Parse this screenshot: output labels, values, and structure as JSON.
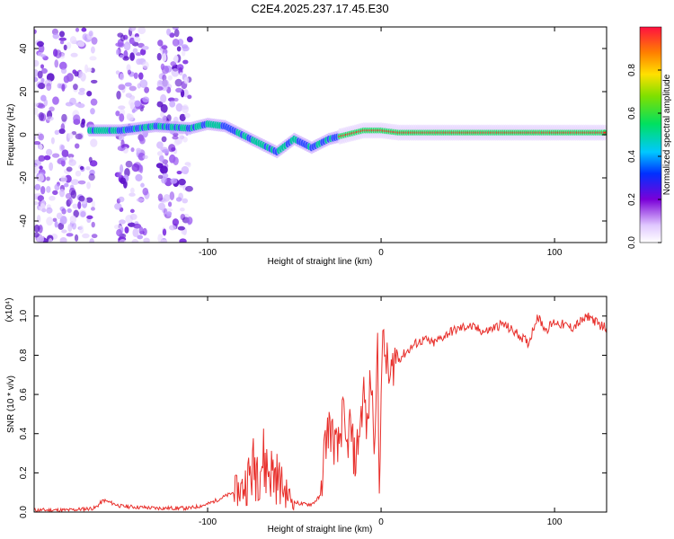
{
  "title": "C2E4.2025.237.17.45.E30",
  "chart_data": [
    {
      "type": "heatmap",
      "xlabel": "Height of straight line (km)",
      "ylabel": "Frequency (Hz)",
      "xlim": [
        -200,
        130
      ],
      "ylim": [
        -50,
        50
      ],
      "x_ticks": [
        -100,
        0,
        100
      ],
      "y_ticks": [
        -40,
        -20,
        0,
        20,
        40
      ],
      "colorbar": {
        "label": "Normalized spectral amplitude",
        "range": [
          0,
          1
        ],
        "ticks": [
          "0.0",
          "0.2",
          "0.4",
          "0.6",
          "0.8"
        ]
      },
      "ridge": {
        "x": [
          -168,
          -150,
          -130,
          -110,
          -100,
          -90,
          -80,
          -70,
          -60,
          -50,
          -45,
          -40,
          -35,
          -30,
          -20,
          -10,
          0,
          10,
          20,
          40,
          60,
          80,
          100,
          130
        ],
        "freq": [
          2,
          2,
          4,
          3,
          5,
          4,
          0,
          -4,
          -8,
          -2,
          -4,
          -6,
          -4,
          -2,
          0,
          2,
          2,
          1,
          1,
          1,
          1,
          1,
          1,
          1
        ]
      }
    },
    {
      "type": "line",
      "xlabel": "Height of straight line (km)",
      "ylabel": "SNR (10 * v/v)",
      "y_multiplier": "(x10⁴)",
      "xlim": [
        -200,
        130
      ],
      "ylim": [
        0,
        1.1
      ],
      "x_ticks": [
        -100,
        0,
        100
      ],
      "y_ticks": [
        "0.0",
        "0.2",
        "0.4",
        "0.6",
        "0.8",
        "1.0"
      ],
      "color": "#e8302c",
      "series": [
        {
          "x": [
            -200,
            -180,
            -165,
            -160,
            -150,
            -130,
            -110,
            -100,
            -90,
            -80,
            -75,
            -70,
            -65,
            -60,
            -55,
            -50,
            -45,
            -40,
            -35,
            -33,
            -30,
            -28,
            -25,
            -22,
            -20,
            -18,
            -15,
            -12,
            -10,
            -8,
            -6,
            -4,
            -2,
            -1,
            0,
            1,
            3,
            5,
            8,
            10,
            15,
            20,
            25,
            30,
            40,
            50,
            60,
            70,
            80,
            85,
            90,
            95,
            100,
            110,
            120,
            125,
            130
          ],
          "y": [
            0.01,
            0.01,
            0.02,
            0.06,
            0.03,
            0.02,
            0.02,
            0.04,
            0.08,
            0.12,
            0.2,
            0.28,
            0.22,
            0.18,
            0.1,
            0.05,
            0.04,
            0.04,
            0.08,
            0.3,
            0.45,
            0.38,
            0.3,
            0.5,
            0.3,
            0.45,
            0.25,
            0.45,
            0.62,
            0.4,
            0.7,
            0.4,
            0.8,
            0.05,
            0.7,
            0.85,
            0.78,
            0.66,
            0.8,
            0.78,
            0.82,
            0.86,
            0.88,
            0.86,
            0.92,
            0.95,
            0.92,
            0.96,
            0.9,
            0.86,
            1.0,
            0.93,
            0.97,
            0.94,
            1.0,
            0.96,
            0.94
          ]
        }
      ]
    }
  ]
}
